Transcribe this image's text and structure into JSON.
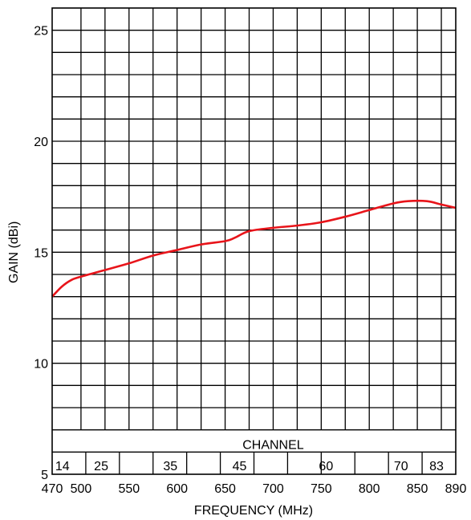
{
  "chart_data": {
    "type": "line",
    "title": "",
    "xlabel": "FREQUENCY (MHz)",
    "ylabel": "GAIN (dBi)",
    "xlim": [
      470,
      890
    ],
    "ylim": [
      5,
      26
    ],
    "x_ticks": [
      {
        "value": 470,
        "label": "470"
      },
      {
        "value": 500,
        "label": "500"
      },
      {
        "value": 550,
        "label": "550"
      },
      {
        "value": 600,
        "label": "600"
      },
      {
        "value": 650,
        "label": "650"
      },
      {
        "value": 700,
        "label": "700"
      },
      {
        "value": 750,
        "label": "750"
      },
      {
        "value": 800,
        "label": "800"
      },
      {
        "value": 850,
        "label": "850"
      },
      {
        "value": 890,
        "label": "890"
      }
    ],
    "y_ticks": [
      {
        "value": 5,
        "label": "5"
      },
      {
        "value": 10,
        "label": "10"
      },
      {
        "value": 15,
        "label": "15"
      },
      {
        "value": 20,
        "label": "20"
      },
      {
        "value": 25,
        "label": "25"
      }
    ],
    "grid": true,
    "channel_title": "CHANNEL",
    "channels": [
      {
        "label": "14",
        "freq": 474
      },
      {
        "label": "25",
        "freq": 521
      },
      {
        "label": "35",
        "freq": 593
      },
      {
        "label": "45",
        "freq": 665
      },
      {
        "label": "60",
        "freq": 755
      },
      {
        "label": "70",
        "freq": 833
      },
      {
        "label": "83",
        "freq": 870
      }
    ],
    "series": [
      {
        "color": "#e8141a",
        "x": [
          470,
          480,
          490,
          500,
          525,
          550,
          575,
          600,
          625,
          650,
          660,
          675,
          700,
          725,
          750,
          775,
          800,
          825,
          840,
          860,
          875,
          890
        ],
        "y": [
          13.0,
          13.45,
          13.75,
          13.9,
          14.2,
          14.5,
          14.85,
          15.1,
          15.35,
          15.5,
          15.65,
          15.95,
          16.1,
          16.2,
          16.35,
          16.6,
          16.9,
          17.2,
          17.3,
          17.3,
          17.15,
          17.0
        ]
      }
    ]
  }
}
